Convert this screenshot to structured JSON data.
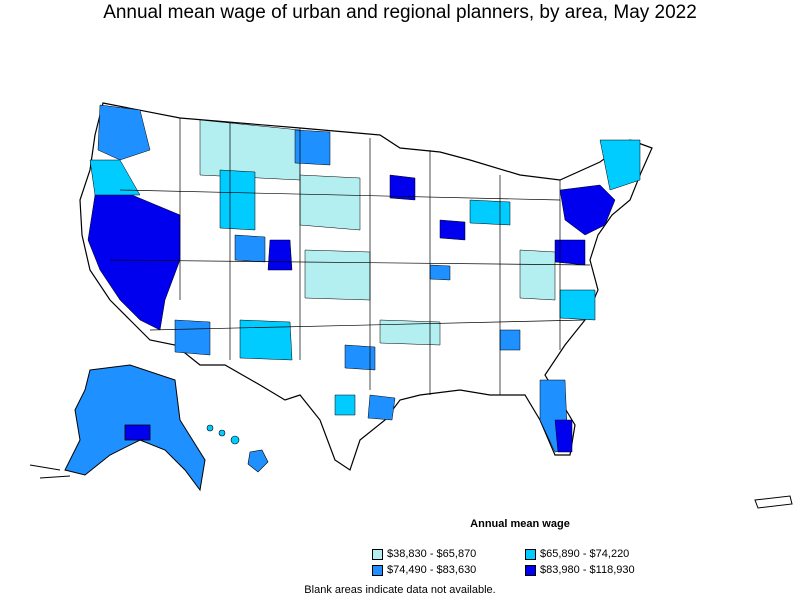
{
  "title": "Annual mean wage of urban and regional planners, by area, May 2022",
  "legend": {
    "title": "Annual mean wage",
    "items": [
      {
        "label": "$38,830 - $65,870",
        "color": "#b3eef0"
      },
      {
        "label": "$65,890 - $74,220",
        "color": "#00ccff"
      },
      {
        "label": "$74,490 - $83,630",
        "color": "#1e90ff"
      },
      {
        "label": "$83,980 - $118,930",
        "color": "#0000ee"
      }
    ]
  },
  "footnote": "Blank areas indicate data not available."
}
